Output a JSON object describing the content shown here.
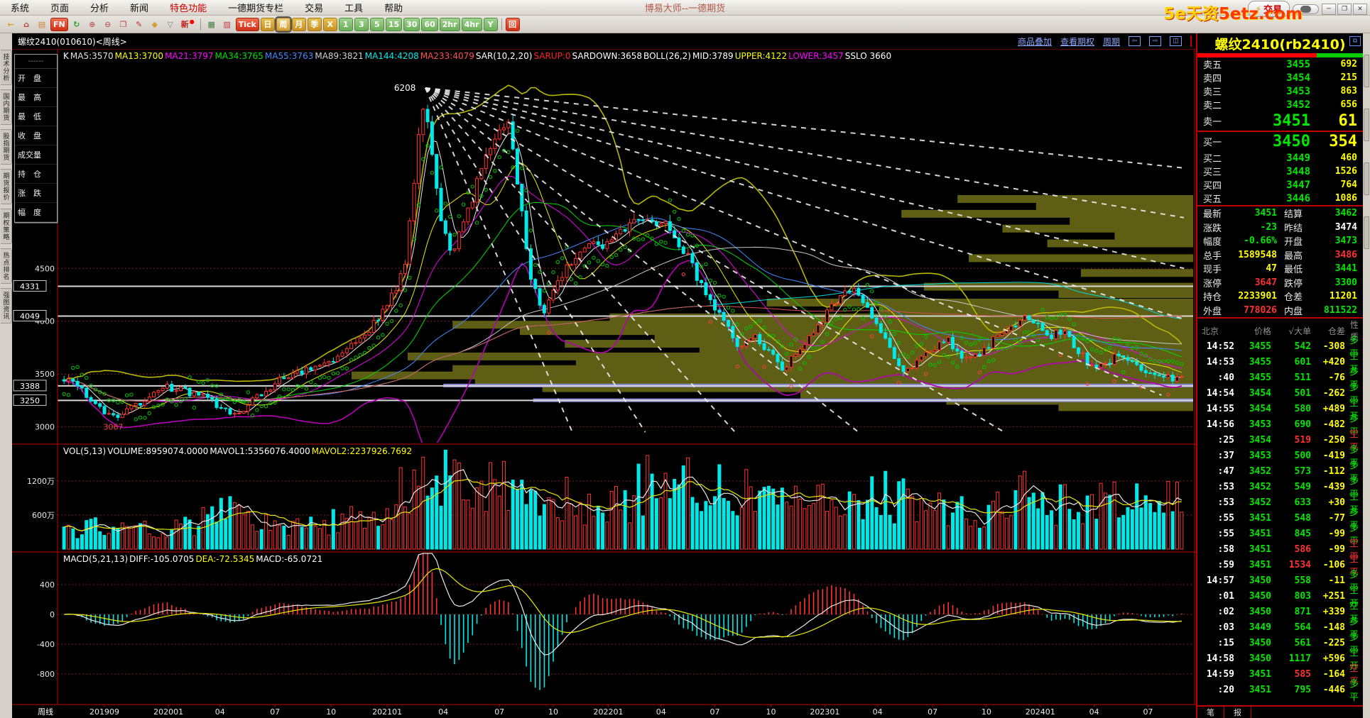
{
  "window": {
    "app_title": "博易大师--一德期货",
    "trade_button": "交易",
    "watermark_part1": "5e天资",
    "watermark_part2": "5etz.com",
    "controls": [
      "─",
      "❒",
      "✕"
    ]
  },
  "menu": {
    "items": [
      {
        "label": "系统"
      },
      {
        "label": "页面"
      },
      {
        "label": "分析"
      },
      {
        "label": "新闻"
      },
      {
        "label": "特色功能",
        "accent": true
      },
      {
        "label": "一德期货专栏"
      },
      {
        "label": "交易"
      },
      {
        "label": "工具"
      },
      {
        "label": "帮助"
      }
    ]
  },
  "toolbar": {
    "buttons": [
      {
        "t": "←",
        "k": "flat",
        "c": "#d8a020",
        "n": "back-icon"
      },
      {
        "t": "⌂",
        "k": "flat",
        "c": "#c04030",
        "n": "home-icon"
      },
      {
        "t": "▤",
        "k": "flat",
        "c": "#d08030",
        "n": "page-icon"
      },
      {
        "t": "FN",
        "k": "red",
        "n": "fn-button"
      },
      {
        "t": "↻",
        "k": "flat",
        "c": "#30a030",
        "n": "refresh-icon"
      },
      {
        "t": "⊕",
        "k": "flat",
        "c": "#c06060",
        "n": "zoom-in-icon"
      },
      {
        "t": "⊖",
        "k": "flat",
        "c": "#c06060",
        "n": "zoom-out-icon"
      },
      {
        "t": "❐",
        "k": "flat",
        "c": "#c04040",
        "n": "overlay-icon"
      },
      {
        "t": "✎",
        "k": "flat",
        "c": "#c03030",
        "n": "draw-icon"
      },
      {
        "t": "◆",
        "k": "flat",
        "c": "#d0a030",
        "n": "paint-icon"
      },
      {
        "t": "▽",
        "k": "flat",
        "c": "#808080",
        "n": "filter-icon"
      },
      {
        "t": "新",
        "k": "flat",
        "c": "#c02020",
        "dot": true,
        "n": "new-feature-button"
      },
      {
        "sep": true
      },
      {
        "t": "▦",
        "k": "flat",
        "c": "#408040",
        "n": "quote-table-icon"
      },
      {
        "t": "▨",
        "k": "flat",
        "c": "#c04040",
        "n": "chart-icon"
      },
      {
        "t": "Tick",
        "k": "red",
        "n": "period-tick-button"
      },
      {
        "t": "日",
        "k": "gold",
        "n": "period-day-button"
      },
      {
        "t": "周",
        "k": "gold",
        "active": true,
        "n": "period-week-button"
      },
      {
        "t": "月",
        "k": "gold",
        "n": "period-month-button"
      },
      {
        "t": "季",
        "k": "gold",
        "n": "period-quarter-button"
      },
      {
        "t": "X",
        "k": "gold",
        "n": "period-x-button"
      },
      {
        "t": "1",
        "k": "green",
        "n": "period-1min-button"
      },
      {
        "t": "3",
        "k": "green",
        "n": "period-3min-button"
      },
      {
        "t": "5",
        "k": "green",
        "n": "period-5min-button"
      },
      {
        "t": "15",
        "k": "green",
        "n": "period-15min-button"
      },
      {
        "t": "30",
        "k": "green",
        "n": "period-30min-button"
      },
      {
        "t": "60",
        "k": "green",
        "n": "period-60min-button"
      },
      {
        "t": "2hr",
        "k": "green",
        "n": "period-2hr-button"
      },
      {
        "t": "4hr",
        "k": "green",
        "n": "period-4hr-button"
      },
      {
        "t": "Y",
        "k": "green",
        "n": "period-year-button"
      },
      {
        "sep": true
      },
      {
        "t": "回",
        "k": "red",
        "n": "playback-button"
      }
    ]
  },
  "left_tabs": [
    "技术分析",
    "国内期货",
    "股指期货",
    "期货报价",
    "期权策略",
    "热点排名",
    "强图资讯"
  ],
  "float_panel": {
    "title": "------",
    "rows": [
      "开　盘",
      "最　高",
      "最　低",
      "收　盘",
      "成交量",
      "持　仓",
      "涨　跌",
      "幅　度"
    ]
  },
  "chart_header": {
    "symbol": "螺纹2410(010610)<周线>",
    "links": [
      "商品叠加",
      "查看期权",
      "周期"
    ],
    "icons": [
      "⇦",
      "⇨",
      "◫"
    ]
  },
  "indicators": {
    "main": [
      [
        "K",
        "#ffffff"
      ],
      [
        "MA5:3570",
        "#e0e0e0"
      ],
      [
        "MA13:3700",
        "#ffff00"
      ],
      [
        "MA21:3797",
        "#ff00ff"
      ],
      [
        "MA34:3765",
        "#00e000"
      ],
      [
        "MA55:3763",
        "#4488ff"
      ],
      [
        "MA89:3821",
        "#d0d0d0"
      ],
      [
        "MA144:4208",
        "#00e8e8"
      ],
      [
        "MA233:4079",
        "#ff5050"
      ],
      [
        "SAR(10,2,20)",
        "#ffffff"
      ],
      [
        "SARUP:0",
        "#ff2020"
      ],
      [
        "SARDOWN:3658",
        "#ffffff"
      ],
      [
        "BOLL(26,2)",
        "#ffffff"
      ],
      [
        "MID:3789",
        "#ffffff"
      ],
      [
        "UPPER:4122",
        "#ffff00"
      ],
      [
        "LOWER:3457",
        "#ff00ff"
      ],
      [
        "SSLO 3660",
        "#ffffff"
      ]
    ],
    "vol": [
      [
        "VOL(5,13)",
        "#ffffff"
      ],
      [
        "VOLUME:8959074.0000",
        "#ffffff"
      ],
      [
        "MAVOL1:5356076.4000",
        "#ffffff"
      ],
      [
        "MAVOL2:2237926.7692",
        "#ffff00"
      ]
    ],
    "macd": [
      [
        "MACD(5,21,13)",
        "#ffffff"
      ],
      [
        "DIFF:-105.0705",
        "#ffffff"
      ],
      [
        "DEA:-72.5345",
        "#ffff00"
      ],
      [
        "MACD:-65.0721",
        "#ffffff"
      ]
    ]
  },
  "chart_data": {
    "type": "candlestick",
    "symbol": "螺纹2410",
    "period": "周线",
    "axis_left_label": "周线",
    "n_candles": 250,
    "price_range": [
      2850,
      6550
    ],
    "y_gridlines": [
      4500,
      4000,
      3500,
      3000
    ],
    "sr_lines": [
      4331,
      4049,
      3388,
      3250
    ],
    "annotations": {
      "peak": "6208",
      "early_low": "3067"
    },
    "x_ticks": [
      {
        "f": 0.038,
        "label": "201909"
      },
      {
        "f": 0.095,
        "label": "202001"
      },
      {
        "f": 0.141,
        "label": "04"
      },
      {
        "f": 0.19,
        "label": "07"
      },
      {
        "f": 0.24,
        "label": "10"
      },
      {
        "f": 0.29,
        "label": "202101"
      },
      {
        "f": 0.34,
        "label": "04"
      },
      {
        "f": 0.39,
        "label": "07"
      },
      {
        "f": 0.438,
        "label": "10"
      },
      {
        "f": 0.487,
        "label": "202201"
      },
      {
        "f": 0.534,
        "label": "04"
      },
      {
        "f": 0.582,
        "label": "07"
      },
      {
        "f": 0.632,
        "label": "10"
      },
      {
        "f": 0.68,
        "label": "202301"
      },
      {
        "f": 0.727,
        "label": "04"
      },
      {
        "f": 0.776,
        "label": "07"
      },
      {
        "f": 0.824,
        "label": "10"
      },
      {
        "f": 0.872,
        "label": "202401"
      },
      {
        "f": 0.92,
        "label": "04"
      },
      {
        "f": 0.968,
        "label": "07"
      }
    ],
    "price_anchors": [
      [
        0,
        3480
      ],
      [
        0.02,
        3320
      ],
      [
        0.045,
        3090
      ],
      [
        0.08,
        3300
      ],
      [
        0.095,
        3380
      ],
      [
        0.12,
        3310
      ],
      [
        0.155,
        3120
      ],
      [
        0.19,
        3420
      ],
      [
        0.22,
        3560
      ],
      [
        0.24,
        3640
      ],
      [
        0.27,
        3850
      ],
      [
        0.29,
        4150
      ],
      [
        0.305,
        4480
      ],
      [
        0.318,
        5750
      ],
      [
        0.324,
        6120
      ],
      [
        0.332,
        5350
      ],
      [
        0.34,
        4880
      ],
      [
        0.348,
        4650
      ],
      [
        0.36,
        5000
      ],
      [
        0.375,
        5450
      ],
      [
        0.39,
        5780
      ],
      [
        0.398,
        5840
      ],
      [
        0.408,
        5200
      ],
      [
        0.418,
        4420
      ],
      [
        0.428,
        4080
      ],
      [
        0.44,
        4330
      ],
      [
        0.455,
        4580
      ],
      [
        0.47,
        4750
      ],
      [
        0.487,
        4700
      ],
      [
        0.5,
        4850
      ],
      [
        0.515,
        5020
      ],
      [
        0.534,
        4940
      ],
      [
        0.548,
        4780
      ],
      [
        0.562,
        4520
      ],
      [
        0.575,
        4240
      ],
      [
        0.582,
        4100
      ],
      [
        0.595,
        3940
      ],
      [
        0.605,
        3740
      ],
      [
        0.617,
        3860
      ],
      [
        0.632,
        3700
      ],
      [
        0.641,
        3540
      ],
      [
        0.652,
        3660
      ],
      [
        0.665,
        3830
      ],
      [
        0.68,
        4060
      ],
      [
        0.695,
        4210
      ],
      [
        0.706,
        4330
      ],
      [
        0.716,
        4140
      ],
      [
        0.727,
        3950
      ],
      [
        0.74,
        3690
      ],
      [
        0.752,
        3520
      ],
      [
        0.765,
        3660
      ],
      [
        0.776,
        3760
      ],
      [
        0.79,
        3810
      ],
      [
        0.802,
        3690
      ],
      [
        0.812,
        3640
      ],
      [
        0.824,
        3760
      ],
      [
        0.836,
        3900
      ],
      [
        0.848,
        3960
      ],
      [
        0.86,
        4040
      ],
      [
        0.872,
        3940
      ],
      [
        0.882,
        3850
      ],
      [
        0.892,
        3910
      ],
      [
        0.902,
        3790
      ],
      [
        0.912,
        3640
      ],
      [
        0.922,
        3540
      ],
      [
        0.932,
        3610
      ],
      [
        0.942,
        3710
      ],
      [
        0.952,
        3640
      ],
      [
        0.96,
        3580
      ],
      [
        0.968,
        3500
      ],
      [
        0.978,
        3470
      ],
      [
        1,
        3450
      ]
    ],
    "volume_anchors": [
      [
        0,
        300
      ],
      [
        0.05,
        450
      ],
      [
        0.1,
        350
      ],
      [
        0.15,
        650
      ],
      [
        0.2,
        420
      ],
      [
        0.25,
        480
      ],
      [
        0.29,
        700
      ],
      [
        0.32,
        1450
      ],
      [
        0.34,
        1500
      ],
      [
        0.37,
        900
      ],
      [
        0.4,
        1300
      ],
      [
        0.43,
        1000
      ],
      [
        0.47,
        700
      ],
      [
        0.5,
        800
      ],
      [
        0.53,
        1250
      ],
      [
        0.56,
        1350
      ],
      [
        0.6,
        1150
      ],
      [
        0.63,
        900
      ],
      [
        0.66,
        750
      ],
      [
        0.7,
        1100
      ],
      [
        0.73,
        950
      ],
      [
        0.76,
        800
      ],
      [
        0.8,
        650
      ],
      [
        0.83,
        700
      ],
      [
        0.86,
        1000
      ],
      [
        0.89,
        800
      ],
      [
        0.92,
        750
      ],
      [
        0.95,
        900
      ],
      [
        0.98,
        850
      ],
      [
        1,
        880
      ]
    ],
    "vol_range": [
      0,
      1600
    ],
    "vol_gridlines": [
      {
        "v": 1200,
        "label": "1200万"
      },
      {
        "v": 600,
        "label": "600万"
      }
    ],
    "macd_gridlines": [
      {
        "v": 400,
        "label": "400"
      },
      {
        "v": 0,
        "label": "0"
      },
      {
        "v": -400,
        "label": "-400"
      },
      {
        "v": -800,
        "label": "-800"
      }
    ],
    "profile_bars": [
      {
        "p": 5160,
        "l": 0.21
      },
      {
        "p": 5090,
        "l": 0.14
      },
      {
        "p": 5020,
        "l": 0.26
      },
      {
        "p": 4950,
        "l": 0.11
      },
      {
        "p": 4880,
        "l": 0.17
      },
      {
        "p": 4810,
        "l": 0.07
      },
      {
        "p": 4740,
        "l": 0.13
      },
      {
        "p": 4600,
        "l": 0.2
      },
      {
        "p": 4460,
        "l": 0.1
      },
      {
        "p": 4330,
        "l": 0.24
      },
      {
        "p": 4260,
        "l": 0.12
      },
      {
        "p": 4180,
        "l": 0.38
      },
      {
        "p": 4110,
        "l": 0.28
      },
      {
        "p": 4040,
        "l": 0.52
      },
      {
        "p": 3970,
        "l": 0.66
      },
      {
        "p": 3910,
        "l": 0.6
      },
      {
        "p": 3850,
        "l": 0.48
      },
      {
        "p": 3790,
        "l": 0.56
      },
      {
        "p": 3730,
        "l": 0.44
      },
      {
        "p": 3670,
        "l": 0.7
      },
      {
        "p": 3610,
        "l": 0.55
      },
      {
        "p": 3550,
        "l": 0.66
      },
      {
        "p": 3490,
        "l": 0.75
      },
      {
        "p": 3430,
        "l": 0.64
      },
      {
        "p": 3370,
        "l": 0.58
      },
      {
        "p": 3310,
        "l": 0.35
      },
      {
        "p": 3250,
        "l": 0.22
      },
      {
        "p": 3190,
        "l": 0.12
      }
    ],
    "band_bars": [
      {
        "p": 3395,
        "from": 0.34
      },
      {
        "p": 3255,
        "from": 0.42
      }
    ],
    "gann_origin": {
      "f": 0.324,
      "p": 6208
    },
    "gann_targets": [
      [
        1,
        5450
      ],
      [
        1,
        4980
      ],
      [
        1,
        4500
      ],
      [
        1,
        4020
      ],
      [
        0.98,
        3300
      ],
      [
        0.84,
        2950
      ],
      [
        0.71,
        2950
      ],
      [
        0.6,
        2950
      ],
      [
        0.52,
        2950
      ],
      [
        0.455,
        2950
      ]
    ],
    "colors": {
      "up": "#ff3232",
      "down": "#00e8e8",
      "ma5": "#e8e8e8",
      "ma13": "#e8e800",
      "ma21": "#e800e8",
      "ma34": "#00d800",
      "ma55": "#4488ff",
      "ma89": "#c8c8c8",
      "ma144": "#00d8d8",
      "ma233": "#d85050",
      "boll_up": "#b8b800",
      "boll_dn": "#b800b8",
      "sar": "#00c800",
      "grid": "#802020",
      "profile": "#5e5e14",
      "band": "#8888cc",
      "sr": "#d8d8d8",
      "gann": "#ececec"
    }
  },
  "quote_panel": {
    "title": "螺纹2410(rb2410)",
    "corner_icon": "⧉",
    "ratio": {
      "red": 0.72,
      "green": 0.28
    },
    "asks": [
      [
        "卖五",
        "3455",
        "692"
      ],
      [
        "卖四",
        "3454",
        "215"
      ],
      [
        "卖三",
        "3453",
        "863"
      ],
      [
        "卖二",
        "3452",
        "656"
      ]
    ],
    "ask1": [
      "卖一",
      "3451",
      "61"
    ],
    "bid1": [
      "买一",
      "3450",
      "354"
    ],
    "bids": [
      [
        "买二",
        "3449",
        "460"
      ],
      [
        "买三",
        "3448",
        "1526"
      ],
      [
        "买四",
        "3447",
        "764"
      ],
      [
        "买五",
        "3446",
        "1086"
      ]
    ],
    "stats": [
      {
        "l1": "最新",
        "v1": "3451",
        "c1": "g",
        "l2": "结算",
        "v2": "3462",
        "c2": "g"
      },
      {
        "l1": "涨跌",
        "v1": "-23",
        "c1": "g",
        "l2": "昨结",
        "v2": "3474",
        "c2": "w"
      },
      {
        "l1": "幅度",
        "v1": "-0.66%",
        "c1": "g",
        "l2": "开盘",
        "v2": "3473",
        "c2": "g"
      },
      {
        "l1": "总手",
        "v1": "1589548",
        "c1": "y",
        "l2": "最高",
        "v2": "3486",
        "c2": "r"
      },
      {
        "l1": "现手",
        "v1": "47",
        "c1": "y",
        "l2": "最低",
        "v2": "3441",
        "c2": "g"
      },
      {
        "l1": "涨停",
        "v1": "3647",
        "c1": "r",
        "l2": "跌停",
        "v2": "3300",
        "c2": "g"
      },
      {
        "l1": "持仓",
        "v1": "2233901",
        "c1": "y",
        "l2": "仓差",
        "v2": "11201",
        "c2": "y"
      },
      {
        "l1": "外盘",
        "v1": "778026",
        "c1": "r",
        "l2": "内盘",
        "v2": "811522",
        "c2": "g"
      }
    ],
    "ts_header": [
      "北京",
      "价格",
      "√大单",
      "仓差",
      "性质"
    ],
    "ts": [
      [
        "14:52",
        "3455",
        "542",
        "g",
        "-308",
        "多平",
        "g"
      ],
      [
        "14:53",
        "3455",
        "601",
        "g",
        "+420",
        "空开",
        "g"
      ],
      [
        ":40",
        "3455",
        "511",
        "g",
        "-76",
        "多平",
        "g"
      ],
      [
        "14:54",
        "3454",
        "501",
        "g",
        "-262",
        "多平",
        "g"
      ],
      [
        "14:55",
        "3454",
        "580",
        "g",
        "+489",
        "空开",
        "g"
      ],
      [
        "14:56",
        "3453",
        "690",
        "g",
        "-482",
        "多平",
        "g"
      ],
      [
        ":25",
        "3454",
        "519",
        "r",
        "-250",
        "空平",
        "r"
      ],
      [
        ":37",
        "3453",
        "500",
        "g",
        "-419",
        "多平",
        "g"
      ],
      [
        ":47",
        "3452",
        "573",
        "g",
        "-112",
        "多平",
        "g"
      ],
      [
        ":53",
        "3452",
        "549",
        "g",
        "-439",
        "多平",
        "g"
      ],
      [
        ":53",
        "3452",
        "633",
        "g",
        "+30",
        "空开",
        "g"
      ],
      [
        ":55",
        "3451",
        "548",
        "g",
        "-77",
        "多平",
        "g"
      ],
      [
        ":55",
        "3451",
        "845",
        "g",
        "-99",
        "多平",
        "g"
      ],
      [
        ":58",
        "3451",
        "586",
        "r",
        "-99",
        "空平",
        "r"
      ],
      [
        ":59",
        "3451",
        "1534",
        "r",
        "-106",
        "空平",
        "r"
      ],
      [
        "14:57",
        "3450",
        "558",
        "g",
        "-11",
        "多平",
        "g"
      ],
      [
        ":01",
        "3450",
        "803",
        "g",
        "+251",
        "空开",
        "g"
      ],
      [
        ":02",
        "3450",
        "871",
        "g",
        "+339",
        "空开",
        "g"
      ],
      [
        ":03",
        "3449",
        "564",
        "g",
        "-148",
        "多平",
        "g"
      ],
      [
        ":15",
        "3450",
        "561",
        "g",
        "-225",
        "多平",
        "g"
      ],
      [
        "14:58",
        "3450",
        "1117",
        "g",
        "+596",
        "空开",
        "g"
      ],
      [
        "14:59",
        "3451",
        "585",
        "r",
        "-164",
        "空平",
        "r"
      ],
      [
        ":20",
        "3451",
        "795",
        "g",
        "-446",
        "多平",
        "g"
      ]
    ],
    "tabs": [
      "笔",
      "报"
    ]
  }
}
